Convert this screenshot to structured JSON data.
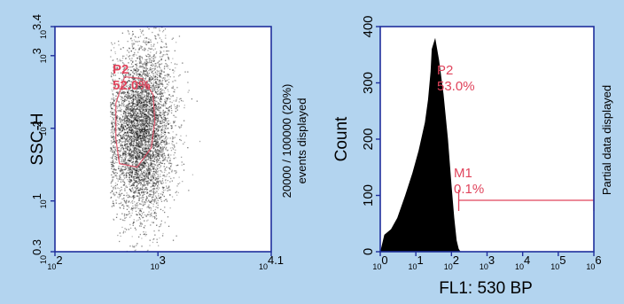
{
  "colors": {
    "background": "#b3d4ef",
    "plot_frame": "#1f2f9c",
    "gate": "#e0445c",
    "text": "#000000"
  },
  "chart_data": [
    {
      "type": "scatter",
      "title": "",
      "xlabel": "",
      "ylabel": "SSC-H",
      "x_scale": "log",
      "y_scale": "log",
      "xlim": [
        100,
        12589
      ],
      "ylim": [
        2,
        2512
      ],
      "x_ticks": [
        {
          "value": 100,
          "base": "10",
          "exp": "2"
        },
        {
          "value": 1000,
          "base": "10",
          "exp": "3"
        },
        {
          "value": 12589,
          "base": "10",
          "exp": "4.1"
        }
      ],
      "y_ticks": [
        {
          "value": 2,
          "base": "10",
          "exp": "0.3"
        },
        {
          "value": 10,
          "base": "10",
          "exp": "1"
        },
        {
          "value": 100,
          "base": "10",
          "exp": "2"
        },
        {
          "value": 1000,
          "base": "10",
          "exp": "3"
        },
        {
          "value": 2512,
          "base": "10",
          "exp": "3.4"
        }
      ],
      "density": {
        "center_x": 680,
        "center_y": 95,
        "spread": "log-normal"
      },
      "gate": {
        "label": "P2",
        "percent": "52.0%"
      },
      "side_note": [
        "20000 / 100000 (20%)",
        "events displayed"
      ]
    },
    {
      "type": "area",
      "title": "",
      "xlabel": "FL1: 530 BP",
      "ylabel": "Count",
      "x_scale": "log",
      "xlim": [
        1,
        1000000
      ],
      "ylim": [
        0,
        400
      ],
      "x_ticks": [
        {
          "value": 1,
          "base": "10",
          "exp": "0"
        },
        {
          "value": 10,
          "base": "10",
          "exp": "1"
        },
        {
          "value": 100,
          "base": "10",
          "exp": "2"
        },
        {
          "value": 1000,
          "base": "10",
          "exp": "3"
        },
        {
          "value": 10000,
          "base": "10",
          "exp": "4"
        },
        {
          "value": 100000,
          "base": "10",
          "exp": "5"
        },
        {
          "value": 1000000,
          "base": "10",
          "exp": "6"
        }
      ],
      "y_ticks": [
        0,
        100,
        200,
        300,
        400
      ],
      "x": [
        1,
        1.3,
        2,
        3,
        5,
        8,
        12,
        18,
        22,
        26,
        28,
        35,
        45,
        60,
        80,
        100,
        120,
        140,
        160,
        180
      ],
      "y": [
        0,
        30,
        40,
        60,
        100,
        140,
        180,
        230,
        270,
        320,
        360,
        380,
        340,
        280,
        200,
        120,
        60,
        20,
        5,
        0
      ],
      "gates": [
        {
          "label": "P2",
          "percent": "53.0%"
        },
        {
          "label": "M1",
          "percent": "0.1%",
          "range": [
            160,
            1000000
          ]
        }
      ],
      "side_note": [
        "Partial data displayed"
      ]
    }
  ]
}
